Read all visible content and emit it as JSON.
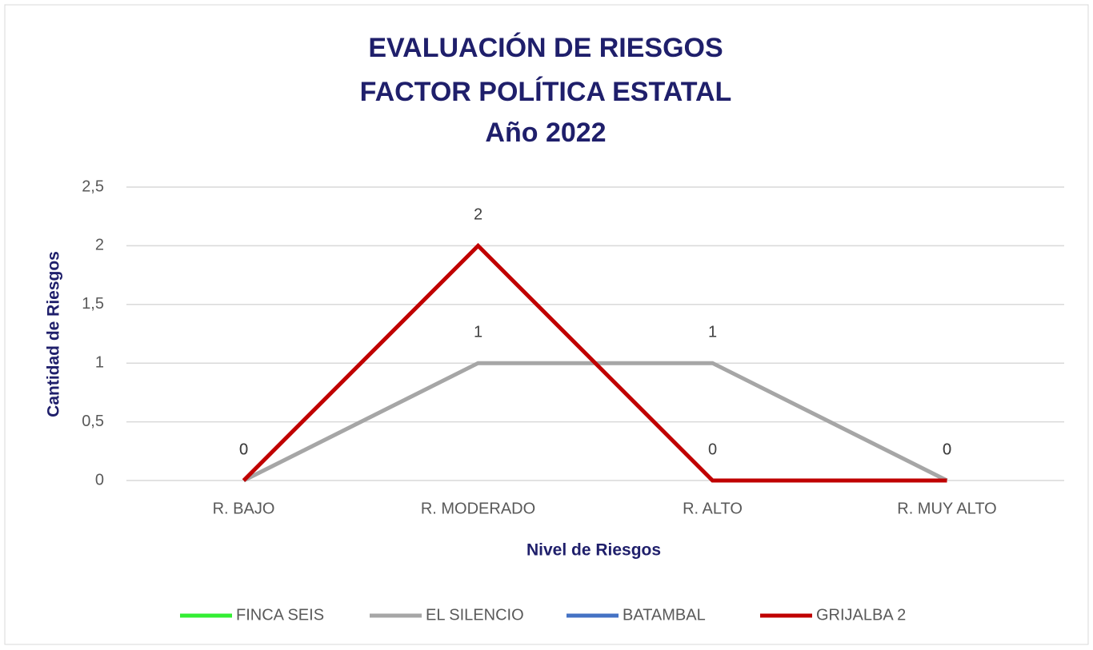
{
  "chart_data": {
    "type": "line",
    "title": [
      "EVALUACIÓN DE RIESGOS",
      "FACTOR POLÍTICA ESTATAL",
      "Año 2022"
    ],
    "x_label": "Nivel de Riesgos",
    "y_label": "Cantidad  de Riesgos",
    "categories": [
      "R. BAJO",
      "R. MODERADO",
      "R. ALTO",
      "R. MUY ALTO"
    ],
    "series": [
      {
        "name": "FINCA SEIS",
        "color": "#33ee33",
        "values": [
          null,
          null,
          null,
          null
        ]
      },
      {
        "name": "EL SILENCIO",
        "color": "#a6a6a6",
        "values": [
          0,
          1,
          1,
          0
        ]
      },
      {
        "name": "BATAMBAL",
        "color": "#4472c4",
        "values": [
          null,
          null,
          null,
          null
        ]
      },
      {
        "name": "GRIJALBA 2",
        "color": "#c00000",
        "values": [
          0,
          2,
          0,
          0
        ]
      }
    ],
    "ylim": [
      0,
      2.5
    ],
    "yticks": [
      0,
      {
        "value": 0.5,
        "label": "0,5"
      },
      1,
      {
        "value": 1.5,
        "label": "1,5"
      },
      2,
      {
        "value": 2.5,
        "label": "2,5"
      }
    ],
    "grid": true,
    "legend": "bottom"
  }
}
